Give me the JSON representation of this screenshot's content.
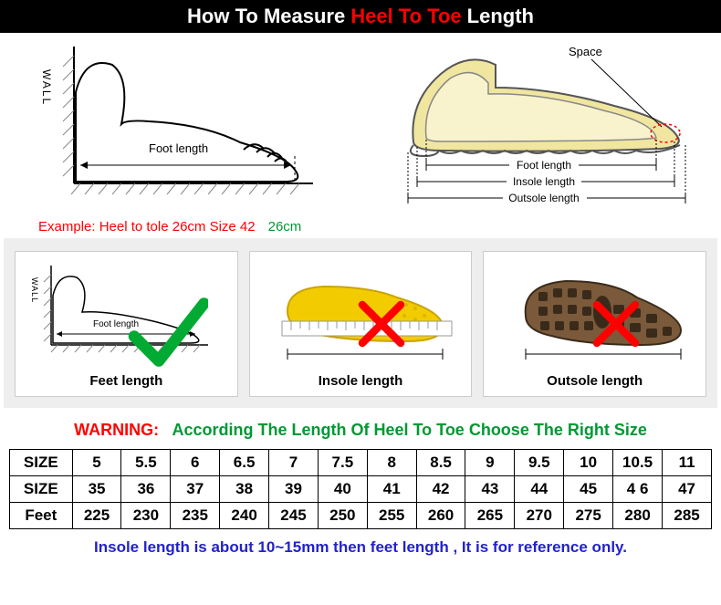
{
  "header": {
    "t1": "How To Measure",
    "t2": "Heel To Toe",
    "t3": "Length",
    "t1_color": "#ffffff",
    "t2_color": "#ff0000",
    "t3_color": "#ffffff",
    "bg": "#000000"
  },
  "diagram_left": {
    "wall_label": "WALL",
    "foot_length_label": "Foot length",
    "example_prefix": "Example: Heel to tole 26cm Size 42",
    "example_value": "26cm",
    "example_prefix_color": "#ff0000",
    "example_value_color": "#009933",
    "foot_stroke": "#000000",
    "hatch_color": "#aaaaaa"
  },
  "diagram_right": {
    "space_label": "Space",
    "br1": "Foot length",
    "br2": "Insole length",
    "br3": "Outsole length",
    "shoe_fill": "#f0e6a0",
    "shoe_outline": "#555555",
    "foot_fill": "#f8f3cc"
  },
  "methods": {
    "bg": "#eeeeee",
    "items": [
      {
        "label": "Feet length",
        "correct": true,
        "wall_label": "WALL",
        "inner_label": "Foot length",
        "label_color": "#000000"
      },
      {
        "label": "Insole length",
        "correct": false,
        "insole_color": "#f2cc00",
        "label_color": "#000000"
      },
      {
        "label": "Outsole length",
        "correct": false,
        "sole_color": "#7a5a3a",
        "label_color": "#000000"
      }
    ],
    "check_color": "#00aa33",
    "x_color": "#ff0000"
  },
  "warning": {
    "prefix": "WARNING:",
    "text": "According The Length Of Heel To Toe Choose The Right Size",
    "prefix_color": "#ff0000",
    "text_color": "#009933"
  },
  "table": {
    "rows": [
      {
        "header": "SIZE",
        "cells": [
          "5",
          "5.5",
          "6",
          "6.5",
          "7",
          "7.5",
          "8",
          "8.5",
          "9",
          "9.5",
          "10",
          "10.5",
          "11"
        ]
      },
      {
        "header": "SIZE",
        "cells": [
          "35",
          "36",
          "37",
          "38",
          "39",
          "40",
          "41",
          "42",
          "43",
          "44",
          "45",
          "4 6",
          "47"
        ]
      },
      {
        "header": "Feet",
        "cells": [
          "225",
          "230",
          "235",
          "240",
          "245",
          "250",
          "255",
          "260",
          "265",
          "270",
          "275",
          "280",
          "285"
        ]
      }
    ],
    "border_color": "#000000"
  },
  "note": {
    "text": "Insole length is about 10~15mm then feet length , It is for reference only.",
    "color": "#2222cc"
  }
}
